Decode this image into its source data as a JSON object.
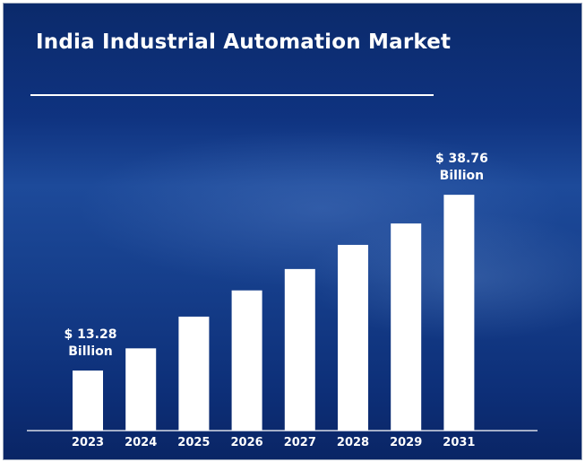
{
  "title": "India Industrial Automation Market",
  "chart_data": {
    "type": "bar",
    "title": "India Industrial Automation Market",
    "categories": [
      "2023",
      "2024",
      "2025",
      "2026",
      "2027",
      "2028",
      "2029",
      "2031"
    ],
    "values": [
      13.28,
      16.5,
      21.1,
      24.9,
      28.0,
      31.5,
      34.6,
      38.76
    ],
    "unit": "USD Billion",
    "data_labels": [
      {
        "category": "2023",
        "lines": [
          "$ 13.28",
          "Billion"
        ]
      },
      {
        "category": "2031",
        "lines": [
          "$ 38.76",
          "Billion"
        ]
      }
    ],
    "xlabel": "",
    "ylabel": "",
    "grid": false,
    "colors": {
      "bar": "#ffffff",
      "background": "#133a86",
      "text": "#ffffff"
    }
  }
}
